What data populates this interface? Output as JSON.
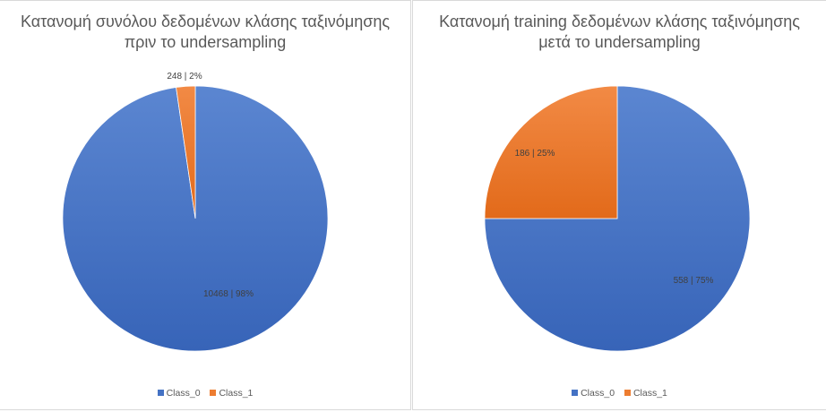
{
  "colors": {
    "class_0": "#4472C4",
    "class_1": "#ED7D31"
  },
  "legend": [
    "Class_0",
    "Class_1"
  ],
  "chart_data": [
    {
      "type": "pie",
      "title_lines": [
        "Κατανομή συνόλου δεδομένων κλάσης ταξινόμησης",
        "πριν το undersampling"
      ],
      "slices": [
        {
          "name": "Class_0",
          "value": 10468,
          "percent": 98,
          "label": "10468 | 98%"
        },
        {
          "name": "Class_1",
          "value": 248,
          "percent": 2,
          "label": "248 | 2%"
        }
      ],
      "legend_position": "bottom"
    },
    {
      "type": "pie",
      "title_lines": [
        "Κατανομή training δεδομένων κλάσης ταξινόμησης",
        "μετά το undersampling"
      ],
      "slices": [
        {
          "name": "Class_0",
          "value": 558,
          "percent": 75,
          "label": "558 | 75%"
        },
        {
          "name": "Class_1",
          "value": 186,
          "percent": 25,
          "label": "186 | 25%"
        }
      ],
      "legend_position": "bottom"
    }
  ]
}
